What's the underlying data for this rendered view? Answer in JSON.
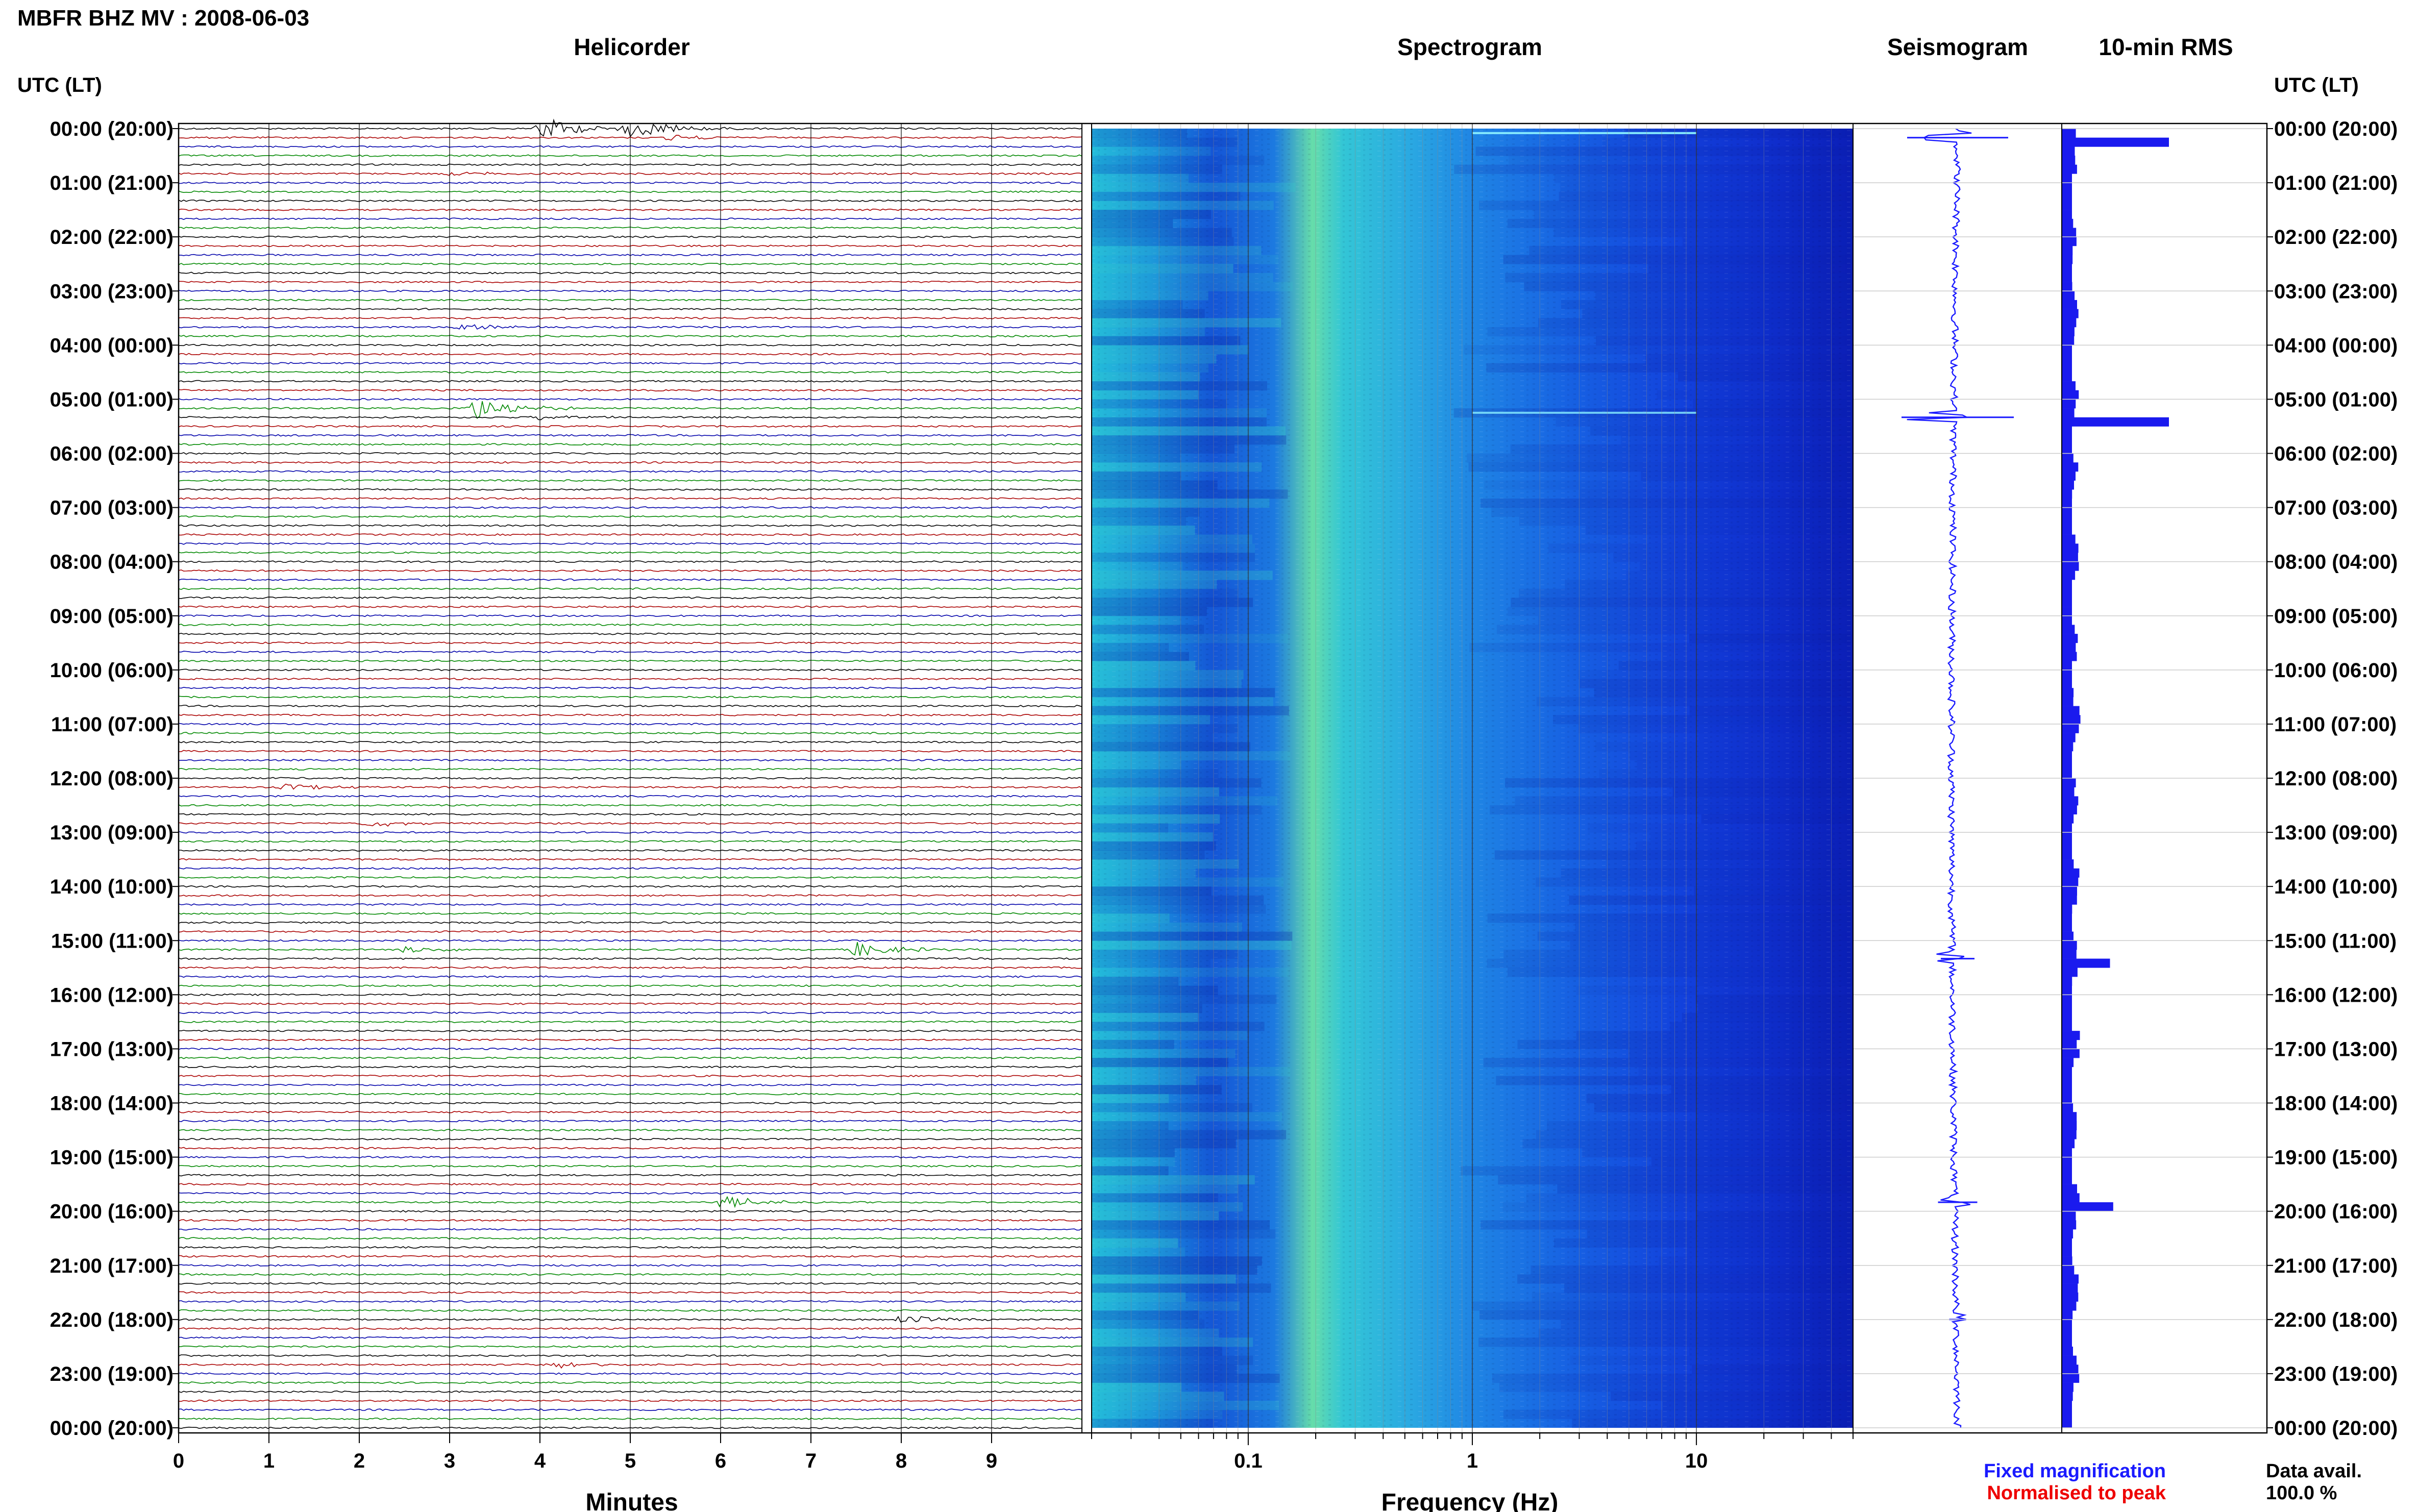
{
  "title": "MBFR BHZ MV : 2008-06-03",
  "utc_header": "UTC (LT)",
  "panels": {
    "helicorder": "Helicorder",
    "spectrogram": "Spectrogram",
    "seismogram": "Seismogram",
    "rms": "10-min RMS"
  },
  "colors": {
    "trace_cycle": [
      "#000000",
      "#aa0000",
      "#0000aa",
      "#008800"
    ],
    "seismogram": "#1a1aff",
    "rms_bar": "#1a1aee",
    "fixed_magnification": "#1a1aff",
    "normalised_to_peak": "#ee0000"
  },
  "chart_data": [
    {
      "type": "line",
      "name": "helicorder",
      "xlabel": "Minutes",
      "xlim": [
        0,
        10
      ],
      "x_ticks": [
        0,
        1,
        2,
        3,
        4,
        5,
        6,
        7,
        8,
        9
      ],
      "x_tick_labels": [
        "0",
        "1",
        "2",
        "3",
        "4",
        "5",
        "6",
        "7",
        "8",
        "9"
      ],
      "rows_per_hour": 6,
      "hours": 24,
      "time_labels": [
        "00:00 (20:00)",
        "01:00 (21:00)",
        "02:00 (22:00)",
        "03:00 (23:00)",
        "04:00 (00:00)",
        "05:00 (01:00)",
        "06:00 (02:00)",
        "07:00 (03:00)",
        "08:00 (04:00)",
        "09:00 (05:00)",
        "10:00 (06:00)",
        "11:00 (07:00)",
        "12:00 (08:00)",
        "13:00 (09:00)",
        "14:00 (10:00)",
        "15:00 (11:00)",
        "16:00 (12:00)",
        "17:00 (13:00)",
        "18:00 (14:00)",
        "19:00 (15:00)",
        "20:00 (16:00)",
        "21:00 (17:00)",
        "22:00 (18:00)",
        "23:00 (19:00)",
        "00:00 (20:00)"
      ],
      "events": [
        {
          "row": 0,
          "minute": 4.0,
          "amplitude": 1.0
        },
        {
          "row": 0,
          "minute": 5.0,
          "amplitude": 0.9
        },
        {
          "row": 1,
          "minute": 5.4,
          "amplitude": 0.25
        },
        {
          "row": 5,
          "minute": 3.0,
          "amplitude": 0.2
        },
        {
          "row": 22,
          "minute": 3.1,
          "amplitude": 0.3
        },
        {
          "row": 31,
          "minute": 3.3,
          "amplitude": 1.0
        },
        {
          "row": 32,
          "minute": 4.0,
          "amplitude": 0.3
        },
        {
          "row": 73,
          "minute": 1.2,
          "amplitude": 0.3
        },
        {
          "row": 77,
          "minute": 2.1,
          "amplitude": 0.3
        },
        {
          "row": 91,
          "minute": 2.5,
          "amplitude": 0.3
        },
        {
          "row": 91,
          "minute": 7.5,
          "amplitude": 0.6
        },
        {
          "row": 119,
          "minute": 6.0,
          "amplitude": 0.55
        },
        {
          "row": 132,
          "minute": 8.0,
          "amplitude": 0.35
        },
        {
          "row": 137,
          "minute": 4.2,
          "amplitude": 0.3
        }
      ]
    },
    {
      "type": "heatmap",
      "name": "spectrogram",
      "xlabel": "Frequency (Hz)",
      "x_scale": "log",
      "xlim": [
        0.02,
        50
      ],
      "x_ticks": [
        0.1,
        1,
        10
      ],
      "x_tick_labels": [
        "0.1",
        "1",
        "10"
      ]
    },
    {
      "type": "line",
      "name": "seismogram",
      "spikes": [
        {
          "row": 1,
          "amplitude": 0.9
        },
        {
          "row": 32,
          "amplitude": 1.0
        },
        {
          "row": 92,
          "amplitude": 0.3
        },
        {
          "row": 119,
          "amplitude": 0.35
        },
        {
          "row": 132,
          "amplitude": 0.15
        }
      ]
    },
    {
      "type": "bar",
      "name": "10-min RMS",
      "peak_bars": [
        {
          "row": 1,
          "value": 1.0
        },
        {
          "row": 32,
          "value": 1.0
        },
        {
          "row": 92,
          "value": 0.45
        },
        {
          "row": 119,
          "value": 0.48
        }
      ],
      "baseline_value": 0.3
    }
  ],
  "legend": {
    "fixed_magnification": "Fixed magnification",
    "normalised_to_peak": "Normalised to peak"
  },
  "data_availability": {
    "label": "Data avail.",
    "value": "100.0 %"
  }
}
